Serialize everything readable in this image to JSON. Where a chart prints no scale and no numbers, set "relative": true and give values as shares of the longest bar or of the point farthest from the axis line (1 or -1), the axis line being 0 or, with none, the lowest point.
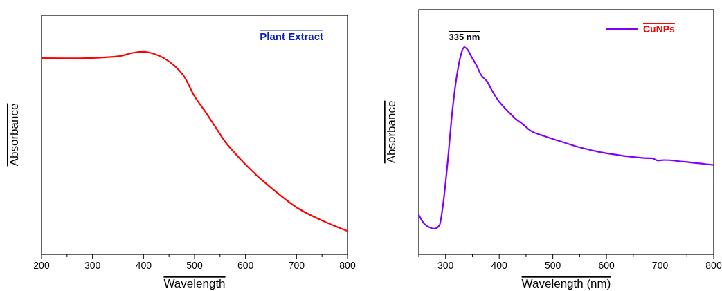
{
  "chart_data": [
    {
      "type": "line",
      "relative": true,
      "xlabel": "Wavelength",
      "ylabel": "Absorbance",
      "annotations": [
        "Plant Extract"
      ],
      "xlim": [
        200,
        800
      ],
      "xticks": [
        200,
        {
          "value": 250,
          "label": null
        },
        300,
        {
          "value": 350,
          "label": null
        },
        400,
        {
          "value": 450,
          "label": null
        },
        500,
        {
          "value": 550,
          "label": null
        },
        600,
        {
          "value": 650,
          "label": null
        },
        700,
        {
          "value": 750,
          "label": null
        },
        800
      ],
      "series": [
        {
          "color": "#ff0000",
          "x": [
            200,
            250,
            300,
            330,
            355,
            380,
            400,
            420,
            440,
            460,
            480,
            500,
            520,
            540,
            560,
            580,
            600,
            620,
            650,
            700,
            750,
            800
          ],
          "values": [
            0.968,
            0.967,
            0.969,
            0.973,
            0.979,
            0.995,
            1.0,
            0.99,
            0.968,
            0.932,
            0.876,
            0.78,
            0.708,
            0.632,
            0.556,
            0.497,
            0.443,
            0.394,
            0.329,
            0.232,
            0.167,
            0.115
          ]
        }
      ]
    },
    {
      "type": "line",
      "relative": true,
      "xlabel": "Wavelength (nm)",
      "ylabel": "Absorbance",
      "legend": "top right",
      "annotations": [
        {
          "text": "335 nm",
          "x": 335,
          "y": 1
        }
      ],
      "xlim": [
        250,
        800
      ],
      "xticks": [
        {
          "value": 250,
          "label": null
        },
        300,
        {
          "value": 350,
          "label": null
        },
        400,
        {
          "value": 450,
          "label": null
        },
        500,
        {
          "value": 550,
          "label": null
        },
        600,
        {
          "value": 650,
          "label": null
        },
        700,
        {
          "value": 750,
          "label": null
        },
        800
      ],
      "series": [
        {
          "name": "CuNPs",
          "color": "#7f00ff",
          "x": [
            250,
            260.8,
            280,
            288.7,
            295,
            303.8,
            312.4,
            321,
            329.6,
            334.8,
            340.4,
            349,
            357.6,
            366.2,
            377,
            387.7,
            398.5,
            415.7,
            430.8,
            441.5,
            458.7,
            484.5,
            519,
            553.4,
            587.8,
            622.3,
            656.7,
            678.2,
            684.7,
            695.4,
            708.3,
            742.8,
            800
          ],
          "values": [
            0.191,
            0.146,
            0.124,
            0.141,
            0.235,
            0.444,
            0.686,
            0.862,
            0.972,
            1.0,
            0.989,
            0.95,
            0.912,
            0.865,
            0.835,
            0.785,
            0.741,
            0.692,
            0.653,
            0.633,
            0.596,
            0.57,
            0.541,
            0.514,
            0.493,
            0.479,
            0.468,
            0.464,
            0.464,
            0.453,
            0.455,
            0.447,
            0.431
          ]
        }
      ]
    }
  ]
}
